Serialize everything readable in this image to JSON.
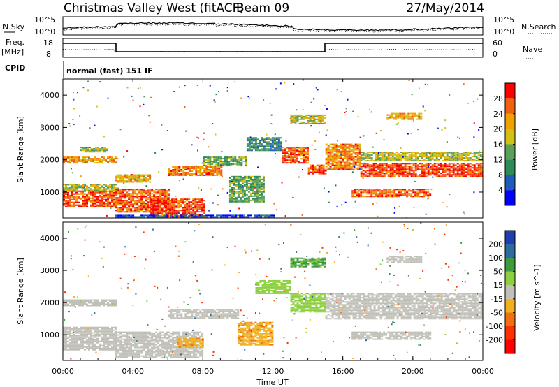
{
  "header": {
    "title": "Christmas Valley West (fitACF)",
    "beam": "Beam 09",
    "date": "27/May/2014"
  },
  "top_panels": {
    "nsky_label": "N.Sky",
    "nsky_ticks": [
      "10^5",
      "10^0"
    ],
    "nsearch_label": "N.Search",
    "nsearch_ticks": [
      "10^5",
      "10^0"
    ],
    "freq_label": "Freq.",
    "freq_unit": "[MHz]",
    "freq_ticks": [
      "18",
      "8"
    ],
    "nave_label": "Nave",
    "nave_ticks": [
      "60",
      "0"
    ],
    "cpid_label": "CPID",
    "cpid_value": "normal (fast) 151 IF"
  },
  "chart_data": [
    {
      "type": "heatmap",
      "name": "power",
      "ylabel": "Slant Range [km]",
      "xlabel": "",
      "y_ticks": [
        "1000",
        "2000",
        "3000",
        "4000"
      ],
      "ylim": [
        200,
        4500
      ],
      "colorbar": {
        "label": "Power [dB]",
        "ticks": [
          "4",
          "8",
          "12",
          "16",
          "20",
          "24",
          "28"
        ],
        "range": [
          0,
          32
        ],
        "colors": [
          "#0000ff",
          "#1f5bb8",
          "#2e8b57",
          "#5aa05a",
          "#d2c014",
          "#f0a000",
          "#f06010",
          "#ff0000"
        ]
      },
      "regions": [
        {
          "t0": 0.0,
          "t1": 3.0,
          "r0": 550,
          "r1": 1050,
          "value": 27
        },
        {
          "t0": 0.0,
          "t1": 3.0,
          "r0": 1050,
          "r1": 1250,
          "value": 17
        },
        {
          "t0": 0.0,
          "t1": 3.0,
          "r0": 1900,
          "r1": 2100,
          "value": 22
        },
        {
          "t0": 1.0,
          "t1": 2.5,
          "r0": 2250,
          "r1": 2400,
          "value": 16
        },
        {
          "t0": 3.0,
          "t1": 6.0,
          "r0": 400,
          "r1": 1100,
          "value": 26
        },
        {
          "t0": 3.0,
          "t1": 5.0,
          "r0": 1300,
          "r1": 1550,
          "value": 20
        },
        {
          "t0": 5.0,
          "t1": 8.0,
          "r0": 250,
          "r1": 800,
          "value": 28
        },
        {
          "t0": 6.0,
          "t1": 9.0,
          "r0": 1500,
          "r1": 1800,
          "value": 24
        },
        {
          "t0": 8.0,
          "t1": 10.5,
          "r0": 1800,
          "r1": 2100,
          "value": 14
        },
        {
          "t0": 9.5,
          "t1": 11.5,
          "r0": 700,
          "r1": 1500,
          "value": 13
        },
        {
          "t0": 10.5,
          "t1": 12.5,
          "r0": 2300,
          "r1": 2700,
          "value": 10
        },
        {
          "t0": 12.5,
          "t1": 14.0,
          "r0": 1900,
          "r1": 2400,
          "value": 26
        },
        {
          "t0": 14.0,
          "t1": 15.0,
          "r0": 1550,
          "r1": 1850,
          "value": 27
        },
        {
          "t0": 13.0,
          "t1": 15.0,
          "r0": 3100,
          "r1": 3400,
          "value": 18
        },
        {
          "t0": 15.0,
          "t1": 17.0,
          "r0": 1700,
          "r1": 2500,
          "value": 24
        },
        {
          "t0": 17.0,
          "t1": 24.0,
          "r0": 1500,
          "r1": 1900,
          "value": 28
        },
        {
          "t0": 17.0,
          "t1": 24.0,
          "r0": 1950,
          "r1": 2250,
          "value": 17
        },
        {
          "t0": 16.5,
          "t1": 21.0,
          "r0": 850,
          "r1": 1100,
          "value": 26
        },
        {
          "t0": 18.5,
          "t1": 20.5,
          "r0": 3250,
          "r1": 3450,
          "value": 21
        },
        {
          "t0": 3.0,
          "t1": 12.0,
          "r0": 200,
          "r1": 300,
          "value": 5
        }
      ]
    },
    {
      "type": "heatmap",
      "name": "velocity",
      "ylabel": "Slant Range [km]",
      "xlabel": "Time UT",
      "y_ticks": [
        "1000",
        "2000",
        "3000",
        "4000"
      ],
      "ylim": [
        200,
        4500
      ],
      "x_ticks": [
        "00:00",
        "04:00",
        "08:00",
        "12:00",
        "16:00",
        "20:00",
        "00:00"
      ],
      "xlim": [
        0,
        24
      ],
      "colorbar": {
        "label": "Velocity [m s^-1]",
        "ticks": [
          "200",
          "100",
          "50",
          "15",
          "-15",
          "-50",
          "-100",
          "-200"
        ],
        "colors": [
          "#1f3fb0",
          "#2e6b9e",
          "#3d9b3d",
          "#8cd040",
          "#c0c0b8",
          "#f0b020",
          "#f07010",
          "#ff3000",
          "#ff0000"
        ]
      },
      "regions": [
        {
          "t0": 0.0,
          "t1": 3.0,
          "r0": 550,
          "r1": 1250,
          "value": 0
        },
        {
          "t0": 0.0,
          "t1": 3.0,
          "r0": 1900,
          "r1": 2100,
          "value": 0
        },
        {
          "t0": 3.0,
          "t1": 8.0,
          "r0": 300,
          "r1": 1100,
          "value": 0
        },
        {
          "t0": 6.0,
          "t1": 10.0,
          "r0": 1500,
          "r1": 1800,
          "value": 0
        },
        {
          "t0": 10.0,
          "t1": 12.0,
          "r0": 700,
          "r1": 1400,
          "value": -40
        },
        {
          "t0": 6.5,
          "t1": 8.0,
          "r0": 600,
          "r1": 900,
          "value": -40
        },
        {
          "t0": 11.0,
          "t1": 13.0,
          "r0": 2300,
          "r1": 2700,
          "value": 30
        },
        {
          "t0": 13.0,
          "t1": 15.0,
          "r0": 1700,
          "r1": 2300,
          "value": 30
        },
        {
          "t0": 13.0,
          "t1": 15.0,
          "r0": 3100,
          "r1": 3400,
          "value": 60
        },
        {
          "t0": 15.0,
          "t1": 24.0,
          "r0": 1500,
          "r1": 2300,
          "value": 0
        },
        {
          "t0": 16.5,
          "t1": 21.0,
          "r0": 850,
          "r1": 1100,
          "value": 0
        },
        {
          "t0": 18.5,
          "t1": 20.5,
          "r0": 3250,
          "r1": 3450,
          "value": 0
        }
      ]
    }
  ]
}
